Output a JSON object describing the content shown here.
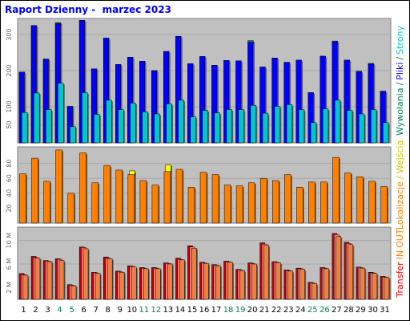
{
  "title": "Raport Dzienny -  marzec 2023",
  "chart_data": [
    {
      "type": "bar",
      "panel": "top",
      "categories": [
        "1",
        "2",
        "3",
        "4",
        "5",
        "6",
        "7",
        "8",
        "9",
        "10",
        "11",
        "12",
        "13",
        "14",
        "15",
        "16",
        "17",
        "18",
        "19",
        "20",
        "21",
        "22",
        "23",
        "24",
        "25",
        "26",
        "27",
        "28",
        "29",
        "30",
        "31"
      ],
      "weekend_days": [
        "4",
        "5",
        "11",
        "12",
        "18",
        "19",
        "25",
        "26"
      ],
      "y_ticks": [
        "50",
        "100",
        "200",
        "300"
      ],
      "ylim": [
        0,
        340
      ],
      "grid": true,
      "legend_labels": [
        {
          "text": "Wywołania",
          "color": "#00805c"
        },
        {
          "text": "/",
          "color": "#00805c"
        },
        {
          "text": "Pliki",
          "color": "#0000ff"
        },
        {
          "text": "/",
          "color": "#00805c"
        },
        {
          "text": "Strony",
          "color": "#00c8c8"
        }
      ],
      "series": [
        {
          "name": "Wywołania",
          "color": "#00805c",
          "values": [
            196,
            325,
            232,
            333,
            101,
            339,
            205,
            290,
            217,
            237,
            226,
            200,
            253,
            295,
            219,
            239,
            215,
            228,
            227,
            283,
            210,
            235,
            223,
            229,
            139,
            240,
            282,
            229,
            198,
            220,
            143
          ]
        },
        {
          "name": "Pliki",
          "color": "#0000ff",
          "values": [
            196,
            325,
            232,
            330,
            101,
            339,
            205,
            290,
            217,
            237,
            226,
            200,
            253,
            295,
            219,
            239,
            215,
            228,
            227,
            278,
            210,
            235,
            223,
            229,
            139,
            240,
            280,
            229,
            198,
            218,
            143
          ]
        },
        {
          "name": "Strony",
          "color": "#00c8c8",
          "values": [
            84,
            138,
            92,
            165,
            45,
            139,
            79,
            118,
            92,
            110,
            86,
            80,
            108,
            118,
            72,
            90,
            83,
            92,
            92,
            104,
            82,
            101,
            106,
            92,
            56,
            94,
            118,
            90,
            80,
            92,
            56
          ]
        }
      ]
    },
    {
      "type": "bar",
      "panel": "middle",
      "categories": [
        "1",
        "2",
        "3",
        "4",
        "5",
        "6",
        "7",
        "8",
        "9",
        "10",
        "11",
        "12",
        "13",
        "14",
        "15",
        "16",
        "17",
        "18",
        "19",
        "20",
        "21",
        "22",
        "23",
        "24",
        "25",
        "26",
        "27",
        "28",
        "29",
        "30",
        "31"
      ],
      "y_ticks": [
        "20",
        "40",
        "60",
        "80"
      ],
      "ylim": [
        0,
        100
      ],
      "grid": true,
      "legend_labels": [
        {
          "text": "Lokalizacje",
          "color": "#ff8000"
        },
        {
          "text": "/",
          "color": "#c8c800"
        },
        {
          "text": "Wejścia",
          "color": "#c8c800"
        }
      ],
      "series": [
        {
          "name": "Wejścia",
          "color": "#ffff00",
          "values": [
            0,
            0,
            0,
            0,
            0,
            0,
            0,
            0,
            0,
            70,
            0,
            0,
            78,
            0,
            0,
            0,
            0,
            0,
            0,
            0,
            0,
            0,
            0,
            0,
            0,
            0,
            0,
            0,
            0,
            0,
            0
          ]
        },
        {
          "name": "Lokalizacje",
          "color": "#ff8000",
          "values": [
            66,
            87,
            56,
            98,
            40,
            94,
            54,
            77,
            71,
            65,
            57,
            51,
            69,
            72,
            48,
            68,
            65,
            51,
            50,
            54,
            60,
            57,
            65,
            48,
            55,
            55,
            88,
            67,
            62,
            56,
            49
          ]
        }
      ]
    },
    {
      "type": "bar",
      "panel": "bottom",
      "categories": [
        "1",
        "2",
        "3",
        "4",
        "5",
        "6",
        "7",
        "8",
        "9",
        "10",
        "11",
        "12",
        "13",
        "14",
        "15",
        "16",
        "17",
        "18",
        "19",
        "20",
        "21",
        "22",
        "23",
        "24",
        "25",
        "26",
        "27",
        "28",
        "29",
        "30",
        "31"
      ],
      "y_ticks": [
        "2 M",
        "6 M",
        "10 M"
      ],
      "ylim": [
        0,
        12
      ],
      "grid": true,
      "legend_labels": [
        {
          "text": "Transfer",
          "color": "#ff0000"
        },
        {
          "text": "IN",
          "color": "#ff8000"
        },
        {
          "text": "OUT",
          "color": "#ff8000"
        }
      ],
      "series": [
        {
          "name": "Transfer",
          "color": "#c00000",
          "values": [
            4.4,
            7.3,
            6.6,
            6.9,
            2.5,
            8.9,
            4.6,
            7.2,
            4.8,
            5.7,
            5.4,
            5.4,
            6.2,
            7.0,
            9.1,
            6.3,
            5.9,
            6.5,
            5.1,
            6.2,
            9.6,
            6.4,
            5.0,
            5.3,
            2.9,
            5.4,
            11.2,
            9.7,
            5.5,
            4.6,
            3.9
          ]
        },
        {
          "name": "IN",
          "color": "#ff8080",
          "values": [
            4.2,
            7.1,
            6.5,
            6.8,
            2.4,
            8.8,
            4.5,
            7.0,
            4.7,
            5.6,
            5.3,
            5.3,
            6.1,
            6.8,
            8.9,
            6.2,
            5.8,
            6.4,
            5.0,
            6.1,
            9.4,
            6.3,
            4.9,
            5.2,
            2.8,
            5.3,
            11.0,
            9.5,
            5.4,
            4.5,
            3.8
          ]
        },
        {
          "name": "OUT",
          "color": "#f08040",
          "values": [
            4.1,
            7.0,
            6.4,
            6.6,
            2.3,
            8.6,
            4.4,
            6.9,
            4.6,
            5.5,
            5.2,
            5.2,
            6.0,
            6.7,
            8.7,
            6.1,
            5.7,
            6.3,
            4.9,
            6.0,
            9.2,
            6.2,
            4.8,
            5.1,
            2.7,
            5.2,
            10.7,
            9.3,
            5.3,
            4.4,
            3.7
          ]
        }
      ]
    }
  ]
}
